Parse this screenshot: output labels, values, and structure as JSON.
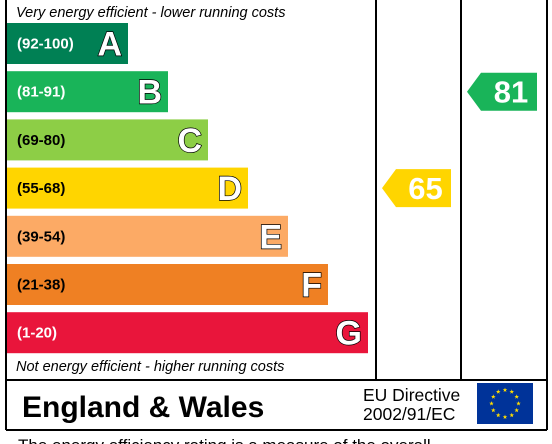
{
  "chart_data": {
    "type": "bar",
    "top_caption": "Very energy efficient - lower running costs",
    "bottom_caption": "Not energy efficient - higher running costs",
    "bands": [
      {
        "range": "(92-100)",
        "letter": "A",
        "color": "#008054",
        "range_color": "#ffffff",
        "min": 92,
        "max": 100
      },
      {
        "range": "(81-91)",
        "letter": "B",
        "color": "#19b459",
        "range_color": "#ffffff",
        "min": 81,
        "max": 91
      },
      {
        "range": "(69-80)",
        "letter": "C",
        "color": "#8dce46",
        "range_color": "#000000",
        "min": 69,
        "max": 80
      },
      {
        "range": "(55-68)",
        "letter": "D",
        "color": "#ffd500",
        "range_color": "#000000",
        "min": 55,
        "max": 68
      },
      {
        "range": "(39-54)",
        "letter": "E",
        "color": "#fcaa65",
        "range_color": "#000000",
        "min": 39,
        "max": 54
      },
      {
        "range": "(21-38)",
        "letter": "F",
        "color": "#ef8023",
        "range_color": "#000000",
        "min": 21,
        "max": 38
      },
      {
        "range": "(1-20)",
        "letter": "G",
        "color": "#e9153b",
        "range_color": "#ffffff",
        "min": 1,
        "max": 20
      }
    ],
    "current": {
      "value": 65,
      "band": "D",
      "color": "#ffd500"
    },
    "potential": {
      "value": 81,
      "band": "B",
      "color": "#19b459"
    }
  },
  "footer": {
    "region": "England & Wales",
    "directive_line1": "EU Directive",
    "directive_line2": "2002/91/EC"
  },
  "note_text": "The energy efficiency rating is a measure of the overall"
}
